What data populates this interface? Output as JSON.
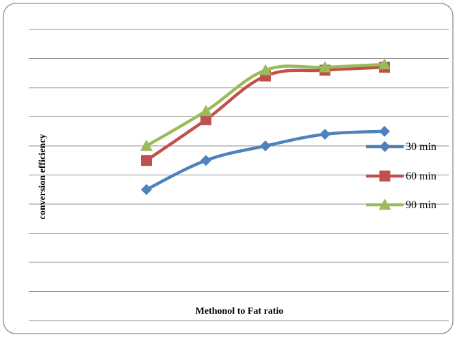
{
  "chart_data": {
    "type": "line",
    "title": "",
    "xlabel": "Methonol to Fat ratio",
    "ylabel": "conversion efficiency",
    "x": [
      1,
      2,
      3,
      4,
      5
    ],
    "ylim": [
      0,
      10
    ],
    "grid": true,
    "legend_position": "right",
    "series": [
      {
        "name": "30 min",
        "color": "#4F81BD",
        "marker": "diamond",
        "values": [
          4.5,
          5.5,
          6.0,
          6.4,
          6.5
        ]
      },
      {
        "name": "60 min",
        "color": "#C0504D",
        "marker": "square",
        "values": [
          5.5,
          6.9,
          8.4,
          8.6,
          8.7
        ]
      },
      {
        "name": "90 min",
        "color": "#9BBB59",
        "marker": "triangle",
        "values": [
          6.0,
          7.2,
          8.6,
          8.7,
          8.8
        ]
      }
    ]
  }
}
